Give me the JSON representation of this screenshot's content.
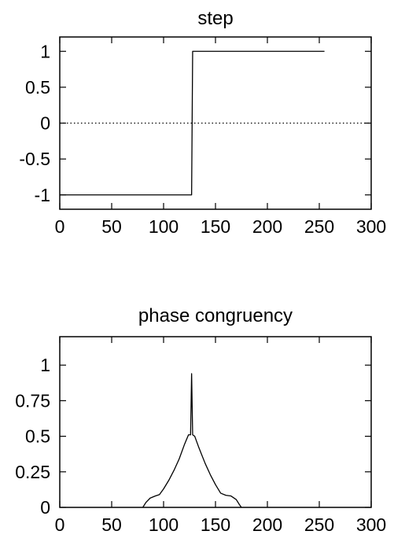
{
  "chart_data": [
    {
      "type": "line",
      "title": "step",
      "xlim": [
        0,
        300
      ],
      "ylim": [
        -1.2,
        1.2
      ],
      "x_ticks": [
        0,
        50,
        100,
        150,
        200,
        250,
        300
      ],
      "x_tick_labels": [
        "0",
        "50",
        "100",
        "150",
        "200",
        "250",
        "300"
      ],
      "y_ticks": [
        -1,
        -0.5,
        0,
        0.5,
        1
      ],
      "y_tick_labels": [
        "-1",
        "-0.5",
        "0",
        "0.5",
        "1"
      ],
      "grid": false,
      "reference_line_y": 0,
      "series": [
        {
          "x": [
            0,
            127,
            128,
            255
          ],
          "y": [
            -1,
            -1,
            1,
            1
          ]
        }
      ]
    },
    {
      "type": "line",
      "title": "phase congruency",
      "xlim": [
        0,
        300
      ],
      "ylim": [
        0,
        1.2
      ],
      "x_ticks": [
        0,
        50,
        100,
        150,
        200,
        250,
        300
      ],
      "x_tick_labels": [
        "0",
        "50",
        "100",
        "150",
        "200",
        "250",
        "300"
      ],
      "y_ticks": [
        0,
        0.25,
        0.5,
        0.75,
        1
      ],
      "y_tick_labels": [
        "0",
        "0.25",
        "0.5",
        "0.75",
        "1"
      ],
      "grid": false,
      "series": [
        {
          "x": [
            80,
            83,
            87,
            92,
            96,
            100,
            105,
            110,
            115,
            120,
            124,
            126,
            127,
            128,
            130,
            134,
            140,
            145,
            150,
            155,
            160,
            165,
            170,
            173,
            175
          ],
          "y": [
            0,
            0.035,
            0.065,
            0.08,
            0.09,
            0.13,
            0.19,
            0.26,
            0.34,
            0.44,
            0.51,
            0.51,
            0.94,
            0.51,
            0.5,
            0.42,
            0.31,
            0.23,
            0.16,
            0.1,
            0.085,
            0.08,
            0.055,
            0.02,
            0
          ]
        }
      ]
    }
  ]
}
